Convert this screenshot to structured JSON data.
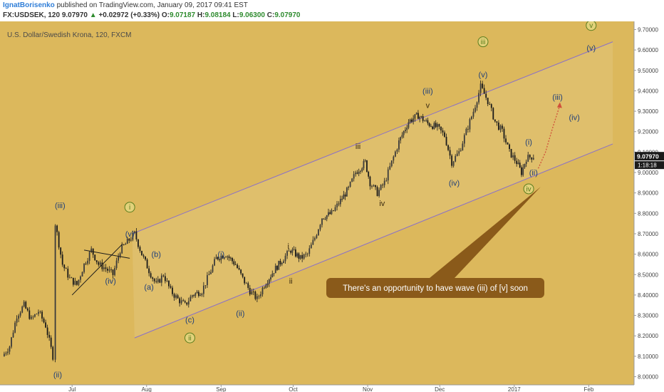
{
  "header": {
    "author": "IgnatBorisenko",
    "published": "published on TradingView.com, January 09, 2017 09:41 EST",
    "symbol": "FX:USDSEK, 120",
    "last": "9.07970",
    "arrow": "▲",
    "change": "+0.02972 (+0.33%)",
    "o_label": "O:",
    "o_value": "9.07187",
    "h_label": "H:",
    "h_value": "9.08184",
    "l_label": "L:",
    "l_value": "9.06300",
    "c_label": "C:",
    "c_value": "9.07970"
  },
  "colors": {
    "background": "#dcb85c",
    "candle": "#1a1a1a",
    "channel": "#8a70c8",
    "wave_green": "#5b7d1e",
    "wave_blue": "#1f3f7a",
    "callout": "#8a5a1a",
    "projection": "#d0503a"
  },
  "chart_data": {
    "type": "candlestick",
    "title": "U.S. Dollar/Swedish Krona, 120, FXCM",
    "ylim": [
      7.96,
      9.74
    ],
    "y_ticks": [
      "8.00000",
      "8.10000",
      "8.20000",
      "8.30000",
      "8.40000",
      "8.50000",
      "8.60000",
      "8.70000",
      "8.80000",
      "8.90000",
      "9.00000",
      "9.10000",
      "9.20000",
      "9.30000",
      "9.40000",
      "9.50000",
      "9.60000",
      "9.70000"
    ],
    "x_ticks": [
      "Jul",
      "Aug",
      "Sep",
      "Oct",
      "Nov",
      "Dec",
      "2017",
      "Feb"
    ],
    "last_price_label": "9.07970",
    "countdown_label": "1:18:18",
    "price_path": [
      {
        "date": "2016-06-02",
        "value": 8.1
      },
      {
        "date": "2016-06-05",
        "value": 8.15
      },
      {
        "date": "2016-06-08",
        "value": 8.3
      },
      {
        "date": "2016-06-11",
        "value": 8.35
      },
      {
        "date": "2016-06-14",
        "value": 8.28
      },
      {
        "date": "2016-06-17",
        "value": 8.32
      },
      {
        "date": "2016-06-20",
        "value": 8.25
      },
      {
        "date": "2016-06-23",
        "value": 8.1
      },
      {
        "date": "2016-06-24",
        "value": 8.75
      },
      {
        "date": "2016-06-27",
        "value": 8.55
      },
      {
        "date": "2016-06-30",
        "value": 8.48
      },
      {
        "date": "2016-07-03",
        "value": 8.45
      },
      {
        "date": "2016-07-06",
        "value": 8.55
      },
      {
        "date": "2016-07-09",
        "value": 8.62
      },
      {
        "date": "2016-07-12",
        "value": 8.55
      },
      {
        "date": "2016-07-15",
        "value": 8.53
      },
      {
        "date": "2016-07-18",
        "value": 8.5
      },
      {
        "date": "2016-07-21",
        "value": 8.62
      },
      {
        "date": "2016-07-24",
        "value": 8.66
      },
      {
        "date": "2016-07-27",
        "value": 8.7
      },
      {
        "date": "2016-07-30",
        "value": 8.6
      },
      {
        "date": "2016-08-02",
        "value": 8.52
      },
      {
        "date": "2016-08-05",
        "value": 8.45
      },
      {
        "date": "2016-08-08",
        "value": 8.5
      },
      {
        "date": "2016-08-11",
        "value": 8.42
      },
      {
        "date": "2016-08-14",
        "value": 8.38
      },
      {
        "date": "2016-08-17",
        "value": 8.35
      },
      {
        "date": "2016-08-20",
        "value": 8.4
      },
      {
        "date": "2016-08-24",
        "value": 8.42
      },
      {
        "date": "2016-08-27",
        "value": 8.5
      },
      {
        "date": "2016-08-30",
        "value": 8.58
      },
      {
        "date": "2016-09-03",
        "value": 8.6
      },
      {
        "date": "2016-09-07",
        "value": 8.55
      },
      {
        "date": "2016-09-10",
        "value": 8.48
      },
      {
        "date": "2016-09-13",
        "value": 8.42
      },
      {
        "date": "2016-09-16",
        "value": 8.38
      },
      {
        "date": "2016-09-19",
        "value": 8.45
      },
      {
        "date": "2016-09-23",
        "value": 8.52
      },
      {
        "date": "2016-09-27",
        "value": 8.58
      },
      {
        "date": "2016-09-30",
        "value": 8.62
      },
      {
        "date": "2016-10-04",
        "value": 8.58
      },
      {
        "date": "2016-10-07",
        "value": 8.6
      },
      {
        "date": "2016-10-10",
        "value": 8.68
      },
      {
        "date": "2016-10-13",
        "value": 8.78
      },
      {
        "date": "2016-10-17",
        "value": 8.8
      },
      {
        "date": "2016-10-20",
        "value": 8.85
      },
      {
        "date": "2016-10-24",
        "value": 8.92
      },
      {
        "date": "2016-10-27",
        "value": 9.0
      },
      {
        "date": "2016-10-31",
        "value": 9.05
      },
      {
        "date": "2016-11-02",
        "value": 8.95
      },
      {
        "date": "2016-11-05",
        "value": 8.9
      },
      {
        "date": "2016-11-08",
        "value": 8.95
      },
      {
        "date": "2016-11-11",
        "value": 9.05
      },
      {
        "date": "2016-11-14",
        "value": 9.15
      },
      {
        "date": "2016-11-18",
        "value": 9.25
      },
      {
        "date": "2016-11-22",
        "value": 9.28
      },
      {
        "date": "2016-11-26",
        "value": 9.24
      },
      {
        "date": "2016-11-30",
        "value": 9.22
      },
      {
        "date": "2016-12-03",
        "value": 9.18
      },
      {
        "date": "2016-12-06",
        "value": 9.05
      },
      {
        "date": "2016-12-09",
        "value": 9.1
      },
      {
        "date": "2016-12-12",
        "value": 9.2
      },
      {
        "date": "2016-12-15",
        "value": 9.3
      },
      {
        "date": "2016-12-18",
        "value": 9.42
      },
      {
        "date": "2016-12-21",
        "value": 9.35
      },
      {
        "date": "2016-12-24",
        "value": 9.25
      },
      {
        "date": "2016-12-27",
        "value": 9.2
      },
      {
        "date": "2016-12-30",
        "value": 9.1
      },
      {
        "date": "2017-01-02",
        "value": 9.05
      },
      {
        "date": "2017-01-04",
        "value": 9.0
      },
      {
        "date": "2017-01-06",
        "value": 9.07
      },
      {
        "date": "2017-01-09",
        "value": 9.08
      }
    ],
    "channel": {
      "upper": [
        {
          "date": "2016-07-26",
          "value": 8.7
        },
        {
          "date": "2017-02-11",
          "value": 9.64
        }
      ],
      "lower": [
        {
          "date": "2016-07-27",
          "value": 8.19
        },
        {
          "date": "2017-02-11",
          "value": 9.14
        }
      ]
    },
    "triangle": {
      "upper": [
        {
          "date": "2016-07-06",
          "value": 8.62
        },
        {
          "date": "2016-07-25",
          "value": 8.58
        }
      ],
      "lower": [
        {
          "date": "2016-07-01",
          "value": 8.4
        },
        {
          "date": "2016-07-22",
          "value": 8.65
        }
      ]
    },
    "projection_path": [
      {
        "date": "2017-01-11",
        "value": 9.02
      },
      {
        "date": "2017-01-14",
        "value": 9.1
      },
      {
        "date": "2017-01-17",
        "value": 9.22
      },
      {
        "date": "2017-01-20",
        "value": 9.33
      }
    ],
    "wave_labels": [
      {
        "text": "(iii)",
        "date": "2016-06-26",
        "value": 8.84,
        "style": "blue"
      },
      {
        "text": "(ii)",
        "date": "2016-06-25",
        "value": 8.01,
        "style": "blue"
      },
      {
        "text": "i",
        "date": "2016-07-25",
        "value": 8.83,
        "style": "green-circle"
      },
      {
        "text": "(v)",
        "date": "2016-07-25",
        "value": 8.7,
        "style": "blue"
      },
      {
        "text": "(iv)",
        "date": "2016-07-17",
        "value": 8.47,
        "style": "blue"
      },
      {
        "text": "(b)",
        "date": "2016-08-05",
        "value": 8.6,
        "style": "blue"
      },
      {
        "text": "(a)",
        "date": "2016-08-02",
        "value": 8.44,
        "style": "blue"
      },
      {
        "text": "(c)",
        "date": "2016-08-19",
        "value": 8.28,
        "style": "blue"
      },
      {
        "text": "ii",
        "date": "2016-08-19",
        "value": 8.19,
        "style": "green-circle"
      },
      {
        "text": "(i)",
        "date": "2016-09-01",
        "value": 8.6,
        "style": "blue"
      },
      {
        "text": "(ii)",
        "date": "2016-09-09",
        "value": 8.31,
        "style": "blue"
      },
      {
        "text": "i",
        "date": "2016-09-29",
        "value": 8.64,
        "style": "dark"
      },
      {
        "text": "ii",
        "date": "2016-09-30",
        "value": 8.47,
        "style": "dark"
      },
      {
        "text": "iii",
        "date": "2016-10-28",
        "value": 9.13,
        "style": "dark"
      },
      {
        "text": "iv",
        "date": "2016-11-07",
        "value": 8.85,
        "style": "dark"
      },
      {
        "text": "(iii)",
        "date": "2016-11-26",
        "value": 9.4,
        "style": "blue"
      },
      {
        "text": "v",
        "date": "2016-11-26",
        "value": 9.33,
        "style": "dark"
      },
      {
        "text": "(iv)",
        "date": "2016-12-07",
        "value": 8.95,
        "style": "blue"
      },
      {
        "text": "iii",
        "date": "2016-12-19",
        "value": 9.64,
        "style": "green-circle"
      },
      {
        "text": "(v)",
        "date": "2016-12-19",
        "value": 9.48,
        "style": "blue"
      },
      {
        "text": "(i)",
        "date": "2017-01-07",
        "value": 9.15,
        "style": "blue"
      },
      {
        "text": "(ii)",
        "date": "2017-01-09",
        "value": 9.0,
        "style": "blue"
      },
      {
        "text": "iv",
        "date": "2017-01-07",
        "value": 8.92,
        "style": "green-circle"
      },
      {
        "text": "(iii)",
        "date": "2017-01-19",
        "value": 9.37,
        "style": "blue"
      },
      {
        "text": "(iv)",
        "date": "2017-01-26",
        "value": 9.27,
        "style": "blue"
      },
      {
        "text": "v",
        "date": "2017-02-02",
        "value": 9.72,
        "style": "green-circle"
      },
      {
        "text": "(v)",
        "date": "2017-02-02",
        "value": 9.61,
        "style": "blue"
      }
    ],
    "annotation": {
      "text": "There's an opportunity to have wave (iii) of [v] soon",
      "pointer_to": {
        "date": "2017-01-12",
        "value": 8.93
      }
    }
  }
}
